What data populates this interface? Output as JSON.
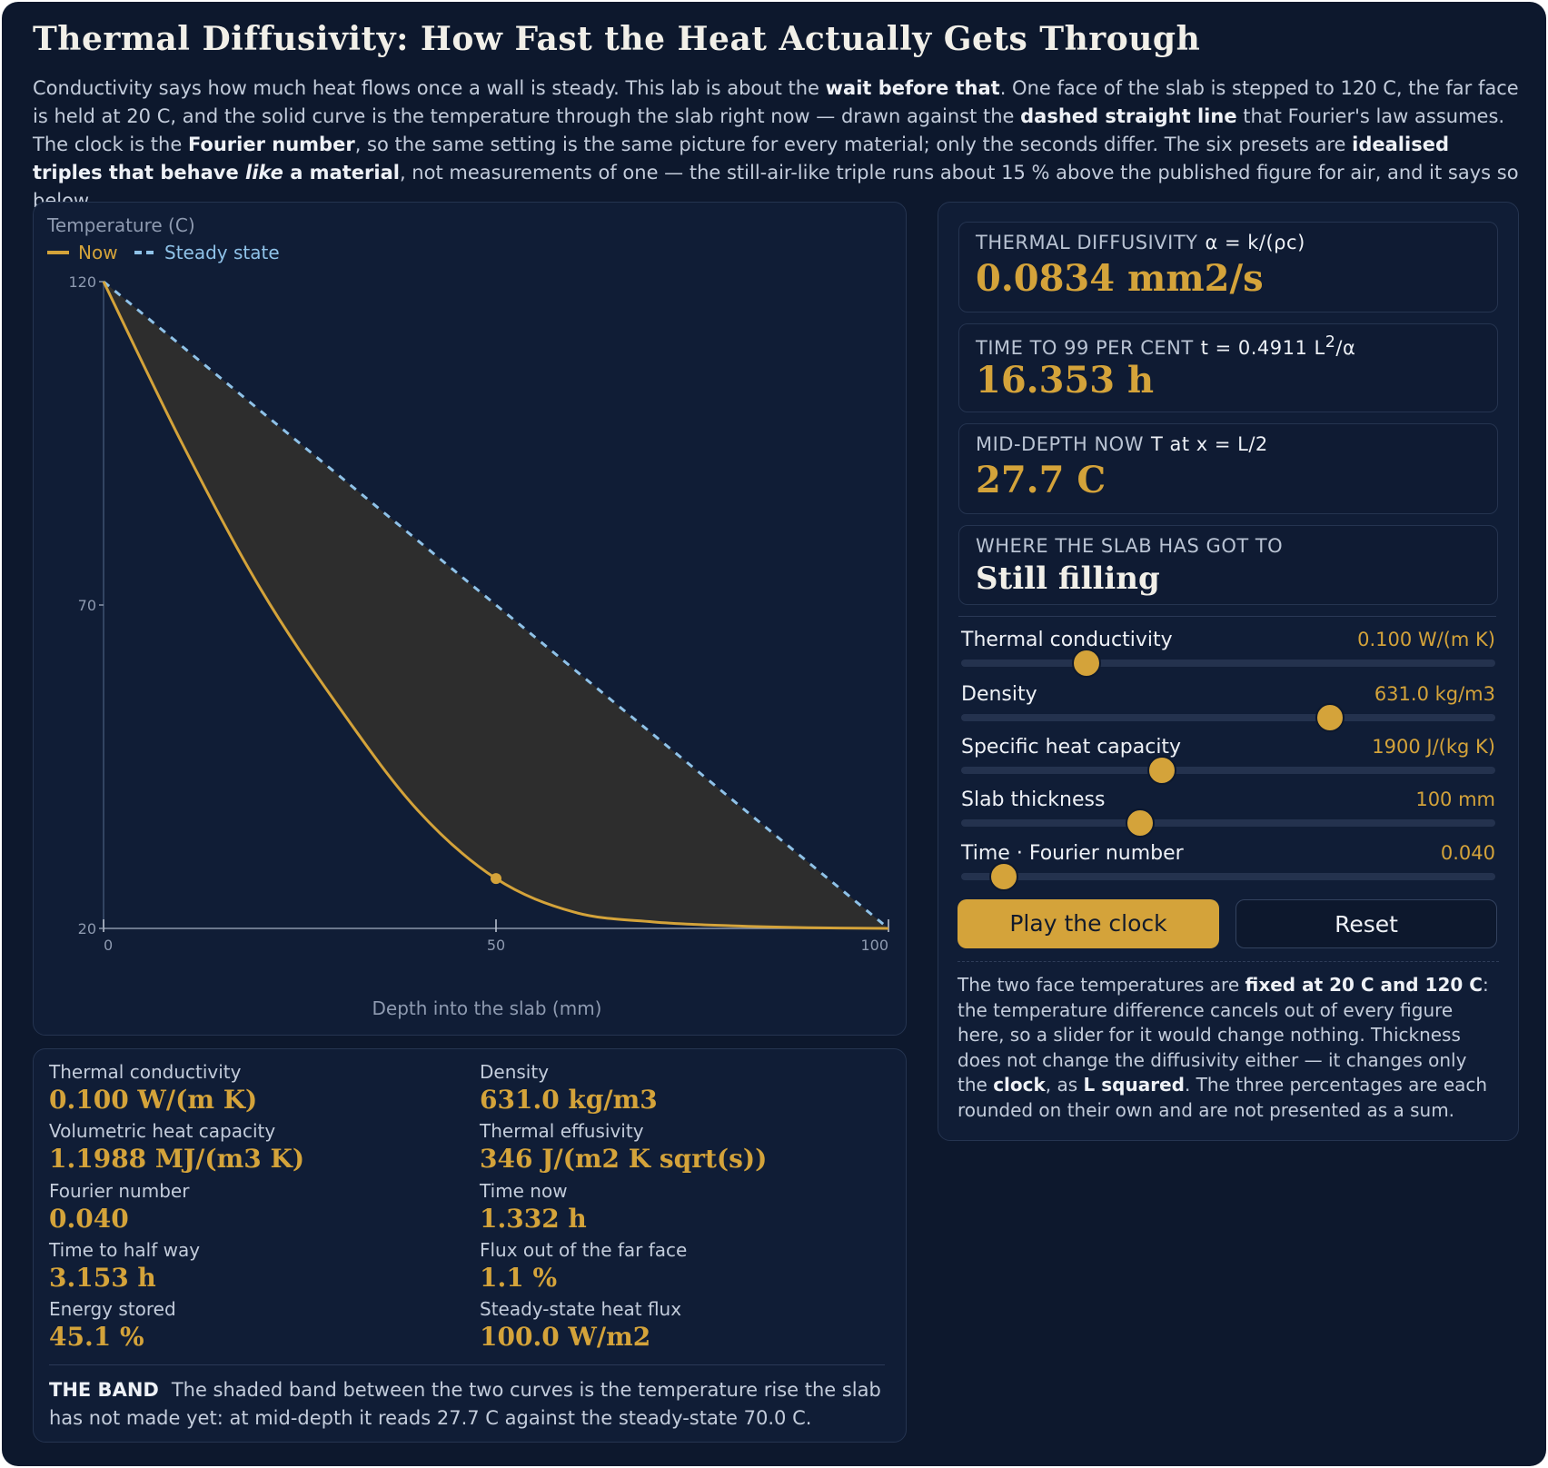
{
  "title": "Thermal Diffusivity: How Fast the Heat Actually Gets Through",
  "intro": {
    "p1": "Conductivity says how much heat flows once a wall is steady. This lab is about the ",
    "b1": "wait before that",
    "p2": ". One face of the slab is stepped to 120 C, the far face is held at 20 C, and the solid curve is the temperature through the slab right now — drawn against the ",
    "b2": "dashed straight line",
    "p3": " that Fourier's law assumes. The clock is the ",
    "b3": "Fourier number",
    "p4": ", so the same setting is the same picture for every material; only the seconds differ. The six presets are ",
    "b4a": "idealised triples that behave ",
    "b4i": "like",
    "b4b": " a material",
    "p5": ", not measurements of one — the still-air-like triple runs about 15 % above the published figure for air, and it says so below."
  },
  "chart_data": {
    "type": "line",
    "title": "",
    "ylabel": "Temperature (C)",
    "xlabel": "Depth into the slab (mm)",
    "xlim": [
      0,
      100
    ],
    "ylim": [
      20,
      120
    ],
    "xticks": [
      "0",
      "50",
      "100"
    ],
    "yticks": [
      "120",
      "70",
      "20"
    ],
    "legend": {
      "now": "Now",
      "steady": "Steady state",
      "placement": "top-left"
    },
    "series": [
      {
        "name": "Now",
        "x": [
          0,
          10,
          20,
          30,
          40,
          50,
          60,
          70,
          80,
          90,
          100
        ],
        "y": [
          120,
          95,
          72.5,
          54.2,
          38.3,
          27.7,
          22.5,
          21.0,
          20.4,
          20.1,
          20
        ]
      },
      {
        "name": "Steady state",
        "x": [
          0,
          100
        ],
        "y": [
          120,
          20
        ]
      }
    ],
    "marker": {
      "x": 50,
      "y": 27.7
    },
    "colors": {
      "now": "#d4a33a",
      "steady": "#8fc2e8",
      "band": "#2d2d2d"
    }
  },
  "stats": [
    {
      "label": "Thermal conductivity",
      "value": "0.100 W/(m K)"
    },
    {
      "label": "Density",
      "value": "631.0 kg/m3"
    },
    {
      "label": "Volumetric heat capacity",
      "value": "1.1988 MJ/(m3 K)"
    },
    {
      "label": "Thermal effusivity",
      "value": "346 J/(m2 K sqrt(s))"
    },
    {
      "label": "Fourier number",
      "value": "0.040"
    },
    {
      "label": "Time now",
      "value": "1.332 h"
    },
    {
      "label": "Time to half way",
      "value": "3.153 h"
    },
    {
      "label": "Flux out of the far face",
      "value": "1.1 %"
    },
    {
      "label": "Energy stored",
      "value": "45.1 %"
    },
    {
      "label": "Steady-state heat flux",
      "value": "100.0 W/m2"
    }
  ],
  "band": {
    "label": "THE BAND",
    "text": "The shaded band between the two curves is the temperature rise the slab has not made yet: at mid-depth it reads 27.7 C against the steady-state 70.0 C."
  },
  "cards": {
    "diffusivity": {
      "key": "THERMAL DIFFUSIVITY",
      "formula": "α = k/(ρc)",
      "value": "0.0834 mm2/s"
    },
    "time99": {
      "key": "TIME TO 99 PER CENT",
      "formula_a": "t = 0.4911 L",
      "formula_sup": "2",
      "formula_b": "/α",
      "value": "16.353 h"
    },
    "middepth": {
      "key": "MID-DEPTH NOW",
      "formula": "T at x = L/2",
      "value": "27.7 C"
    },
    "status": {
      "key": "WHERE THE SLAB HAS GOT TO",
      "value": "Still filling"
    }
  },
  "sliders": [
    {
      "name": "Thermal conductivity",
      "value": "0.100 W/(m K)",
      "fraction": 0.235
    },
    {
      "name": "Density",
      "value": "631.0 kg/m3",
      "fraction": 0.69
    },
    {
      "name": "Specific heat capacity",
      "value": "1900 J/(kg K)",
      "fraction": 0.375
    },
    {
      "name": "Slab thickness",
      "value": "100 mm",
      "fraction": 0.335
    },
    {
      "name": "Time · Fourier number",
      "value": "0.040",
      "fraction": 0.08
    }
  ],
  "buttons": {
    "play": "Play the clock",
    "reset": "Reset"
  },
  "note": {
    "p1": "The two face temperatures are ",
    "b1": "fixed at 20 C and 120 C",
    "p2": ": the temperature difference cancels out of every figure here, so a slider for it would change nothing. Thickness does not change the diffusivity either — it changes only the ",
    "b2": "clock",
    "p3": ", as ",
    "b3": "L squared",
    "p4": ". The three percentages are each rounded on their own and are not presented as a sum."
  }
}
